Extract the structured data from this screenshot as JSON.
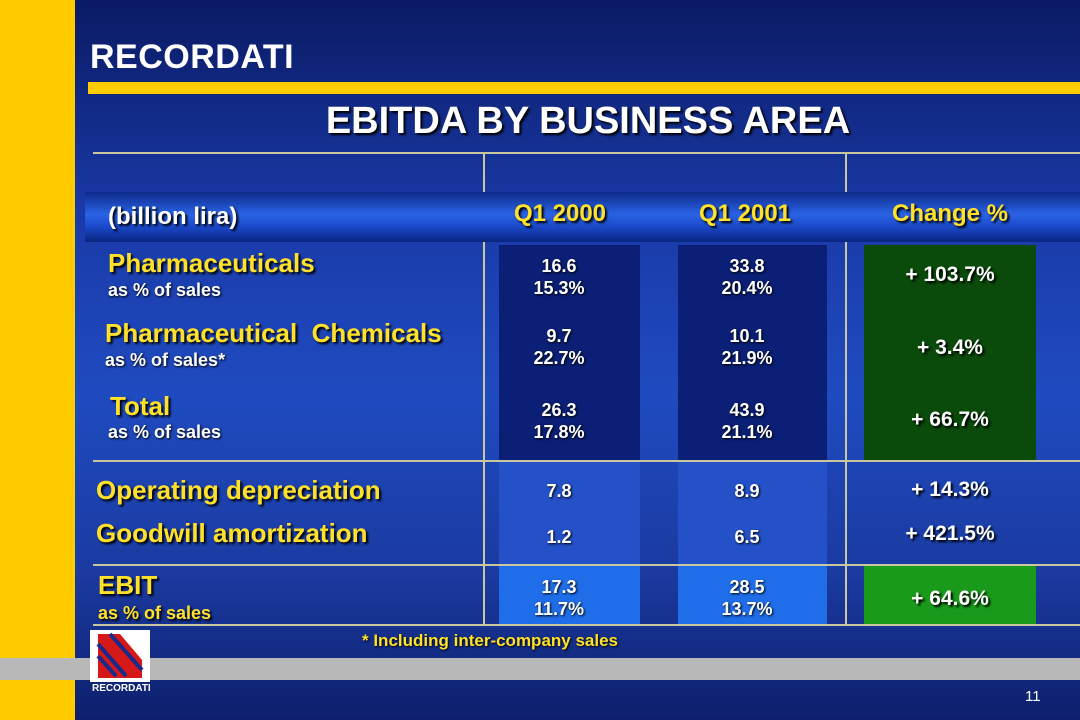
{
  "brand": {
    "name": "RECORDATI",
    "small_name": "RECORDATI"
  },
  "title": "EBITDA BY BUSINESS AREA",
  "unit": "(billion lira)",
  "columns": {
    "q1_2000": "Q1 2000",
    "q1_2001": "Q1 2001",
    "change": "Change %"
  },
  "rows": {
    "pharmaceuticals": {
      "label": "Pharmaceuticals",
      "sub": "as % of sales",
      "q1_2000": "16.6",
      "q1_2000_pct": "15.3%",
      "q1_2001": "33.8",
      "q1_2001_pct": "20.4%",
      "change": "+ 103.7%"
    },
    "chemicals": {
      "label": "Pharmaceutical  Chemicals",
      "sub": "as % of sales*",
      "q1_2000": "9.7",
      "q1_2000_pct": "22.7%",
      "q1_2001": "10.1",
      "q1_2001_pct": "21.9%",
      "change": "+ 3.4%"
    },
    "total": {
      "label": "Total",
      "sub": "as % of sales",
      "q1_2000": "26.3",
      "q1_2000_pct": "17.8%",
      "q1_2001": "43.9",
      "q1_2001_pct": "21.1%",
      "change": "+ 66.7%"
    },
    "depreciation": {
      "label": "Operating depreciation",
      "q1_2000": "7.8",
      "q1_2001": "8.9",
      "change": "+ 14.3%"
    },
    "goodwill": {
      "label": "Goodwill amortization",
      "q1_2000": "1.2",
      "q1_2001": "6.5",
      "change": "+ 421.5%"
    },
    "ebit": {
      "label": "EBIT",
      "sub": "as % of sales",
      "q1_2000": "17.3",
      "q1_2000_pct": "11.7%",
      "q1_2001": "28.5",
      "q1_2001_pct": "13.7%",
      "change": "+ 64.6%"
    }
  },
  "footnote": "* Including inter-company sales",
  "page_number": "11",
  "colors": {
    "accent_yellow": "#ffcc00",
    "change_dark_green": "#0a4a0a",
    "change_green": "#1a9a1a",
    "background_blue": "#1f4bc0"
  }
}
